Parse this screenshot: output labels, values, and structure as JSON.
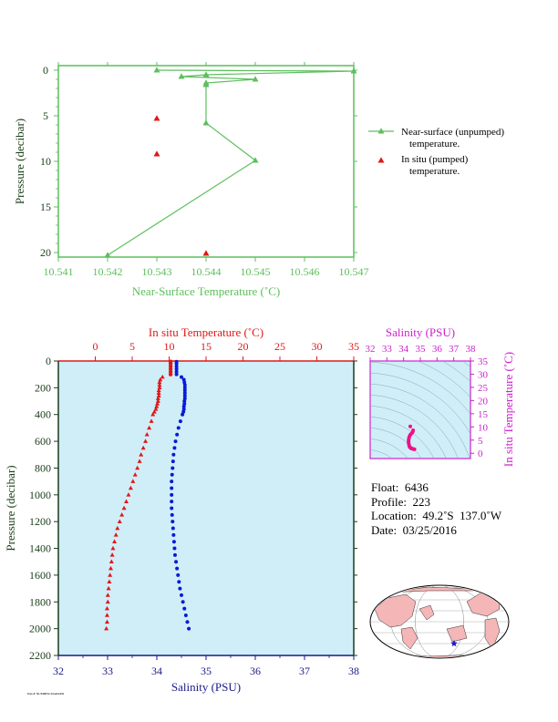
{
  "colors": {
    "green": "#5cbf5c",
    "red": "#e01818",
    "blue": "#0a1ad8",
    "magenta": "#cc22cc",
    "axis_dark": "#1a3d1a",
    "navy": "#1a1a88",
    "panel_bg": "#cfeef8",
    "land": "#f4b6b6",
    "ocean": "#ffffff"
  },
  "info": {
    "float": "Float:  6436",
    "profile": "Profile:  223",
    "location": "Location:  49.2˚S  137.0˚W",
    "date": "Date:  03/25/2016"
  },
  "tiny_text": "PAGE NUMBER MARKER",
  "chart_data": [
    {
      "id": "near-surface",
      "type": "line",
      "xlabel": "Near-Surface Temperature (˚C)",
      "ylabel": "Pressure (decibar)",
      "xlim": [
        10.541,
        10.547
      ],
      "ylim": [
        20.5,
        -0.5
      ],
      "xticks": [
        "10.541",
        "10.542",
        "10.543",
        "10.544",
        "10.545",
        "10.546",
        "10.547"
      ],
      "yticks": [
        0,
        5,
        10,
        15,
        20
      ],
      "series": [
        {
          "name": "Near-surface (unpumped) temperature.",
          "style": "line-triangle",
          "color": "#5cbf5c",
          "points": [
            [
              10.543,
              0.0
            ],
            [
              10.547,
              0.1
            ],
            [
              10.544,
              0.5
            ],
            [
              10.5435,
              0.7
            ],
            [
              10.545,
              1.0
            ],
            [
              10.544,
              1.4
            ],
            [
              10.544,
              1.6
            ],
            [
              10.544,
              5.8
            ],
            [
              10.545,
              9.9
            ],
            [
              10.542,
              20.3
            ]
          ]
        },
        {
          "name": "In situ (pumped) temperature.",
          "style": "triangle",
          "color": "#e01818",
          "points": [
            [
              10.543,
              5.3
            ],
            [
              10.543,
              9.2
            ],
            [
              10.544,
              20.1
            ]
          ]
        }
      ],
      "legend": [
        {
          "line1": "Near-surface (unpumped)",
          "line2": "temperature."
        },
        {
          "line1": "In situ (pumped)",
          "line2": "temperature."
        }
      ],
      "legend_position": "right"
    },
    {
      "id": "profile",
      "type": "scatter",
      "top_xlabel": "In situ Temperature (˚C)",
      "bottom_xlabel": "Salinity (PSU)",
      "ylabel": "Pressure (decibar)",
      "temp_xlim": [
        -5,
        35
      ],
      "temp_xticks": [
        0,
        5,
        10,
        15,
        20,
        25,
        30,
        35
      ],
      "sal_xlim": [
        32,
        38
      ],
      "sal_xticks": [
        32,
        33,
        34,
        35,
        36,
        37,
        38
      ],
      "ylim": [
        2200,
        0
      ],
      "yticks": [
        0,
        200,
        400,
        600,
        800,
        1000,
        1200,
        1400,
        1600,
        1800,
        2000,
        2200
      ],
      "temperature": {
        "name": "In situ Temperature",
        "color": "#e01818",
        "pressure": [
          5,
          20,
          40,
          60,
          80,
          100,
          120,
          140,
          160,
          180,
          200,
          220,
          240,
          260,
          280,
          300,
          320,
          340,
          360,
          380,
          400,
          450,
          500,
          550,
          600,
          650,
          700,
          750,
          800,
          850,
          900,
          950,
          1000,
          1050,
          1100,
          1150,
          1200,
          1250,
          1300,
          1350,
          1400,
          1450,
          1500,
          1550,
          1600,
          1650,
          1700,
          1750,
          1800,
          1850,
          1900,
          1950,
          2000
        ],
        "values": [
          10.2,
          10.2,
          10.2,
          10.2,
          10.2,
          10.2,
          9.1,
          8.8,
          8.7,
          8.7,
          8.7,
          8.6,
          8.6,
          8.6,
          8.5,
          8.5,
          8.4,
          8.3,
          8.2,
          8.0,
          7.8,
          7.6,
          7.3,
          7.0,
          6.8,
          6.5,
          6.2,
          6.0,
          5.7,
          5.4,
          5.1,
          4.8,
          4.5,
          4.2,
          3.9,
          3.6,
          3.3,
          3.0,
          2.8,
          2.6,
          2.4,
          2.3,
          2.2,
          2.1,
          2.0,
          1.9,
          1.8,
          1.7,
          1.7,
          1.6,
          1.6,
          1.6,
          1.5
        ]
      },
      "salinity": {
        "name": "Salinity",
        "color": "#0a1ad8",
        "pressure": [
          5,
          20,
          40,
          60,
          80,
          100,
          120,
          140,
          160,
          180,
          200,
          220,
          240,
          260,
          280,
          300,
          320,
          340,
          360,
          380,
          400,
          450,
          500,
          550,
          600,
          650,
          700,
          750,
          800,
          850,
          900,
          950,
          1000,
          1050,
          1100,
          1150,
          1200,
          1250,
          1300,
          1350,
          1400,
          1450,
          1500,
          1550,
          1600,
          1650,
          1700,
          1750,
          1800,
          1850,
          1900,
          1950,
          2000
        ],
        "values": [
          34.4,
          34.4,
          34.4,
          34.4,
          34.4,
          34.4,
          34.5,
          34.55,
          34.56,
          34.57,
          34.57,
          34.57,
          34.57,
          34.57,
          34.57,
          34.56,
          34.56,
          34.55,
          34.55,
          34.54,
          34.52,
          34.48,
          34.44,
          34.41,
          34.38,
          34.36,
          34.34,
          34.33,
          34.32,
          34.31,
          34.3,
          34.3,
          34.3,
          34.3,
          34.3,
          34.31,
          34.32,
          34.33,
          34.34,
          34.35,
          34.36,
          34.37,
          34.39,
          34.41,
          34.43,
          34.45,
          34.47,
          34.5,
          34.53,
          34.56,
          34.59,
          34.62,
          34.65
        ]
      }
    },
    {
      "id": "ts-diagram",
      "type": "scatter",
      "xlabel": "Salinity (PSU)",
      "ylabel": "In situ Temperature (˚C)",
      "xlim": [
        32,
        38
      ],
      "xticks": [
        32,
        33,
        34,
        35,
        36,
        37,
        38
      ],
      "ylim": [
        -2,
        35
      ],
      "yticks": [
        0,
        5,
        10,
        15,
        20,
        25,
        30,
        35
      ],
      "color": "#ee1188",
      "points": [
        [
          34.4,
          10.2
        ],
        [
          34.57,
          8.7
        ],
        [
          34.55,
          8.3
        ],
        [
          34.52,
          7.8
        ],
        [
          34.44,
          7.3
        ],
        [
          34.38,
          6.8
        ],
        [
          34.34,
          6.2
        ],
        [
          34.32,
          5.7
        ],
        [
          34.3,
          5.1
        ],
        [
          34.3,
          4.5
        ],
        [
          34.3,
          3.9
        ],
        [
          34.32,
          3.3
        ],
        [
          34.34,
          2.8
        ],
        [
          34.36,
          2.4
        ],
        [
          34.39,
          2.2
        ],
        [
          34.43,
          2.0
        ],
        [
          34.47,
          1.8
        ],
        [
          34.53,
          1.7
        ],
        [
          34.59,
          1.6
        ],
        [
          34.65,
          1.5
        ]
      ]
    }
  ]
}
